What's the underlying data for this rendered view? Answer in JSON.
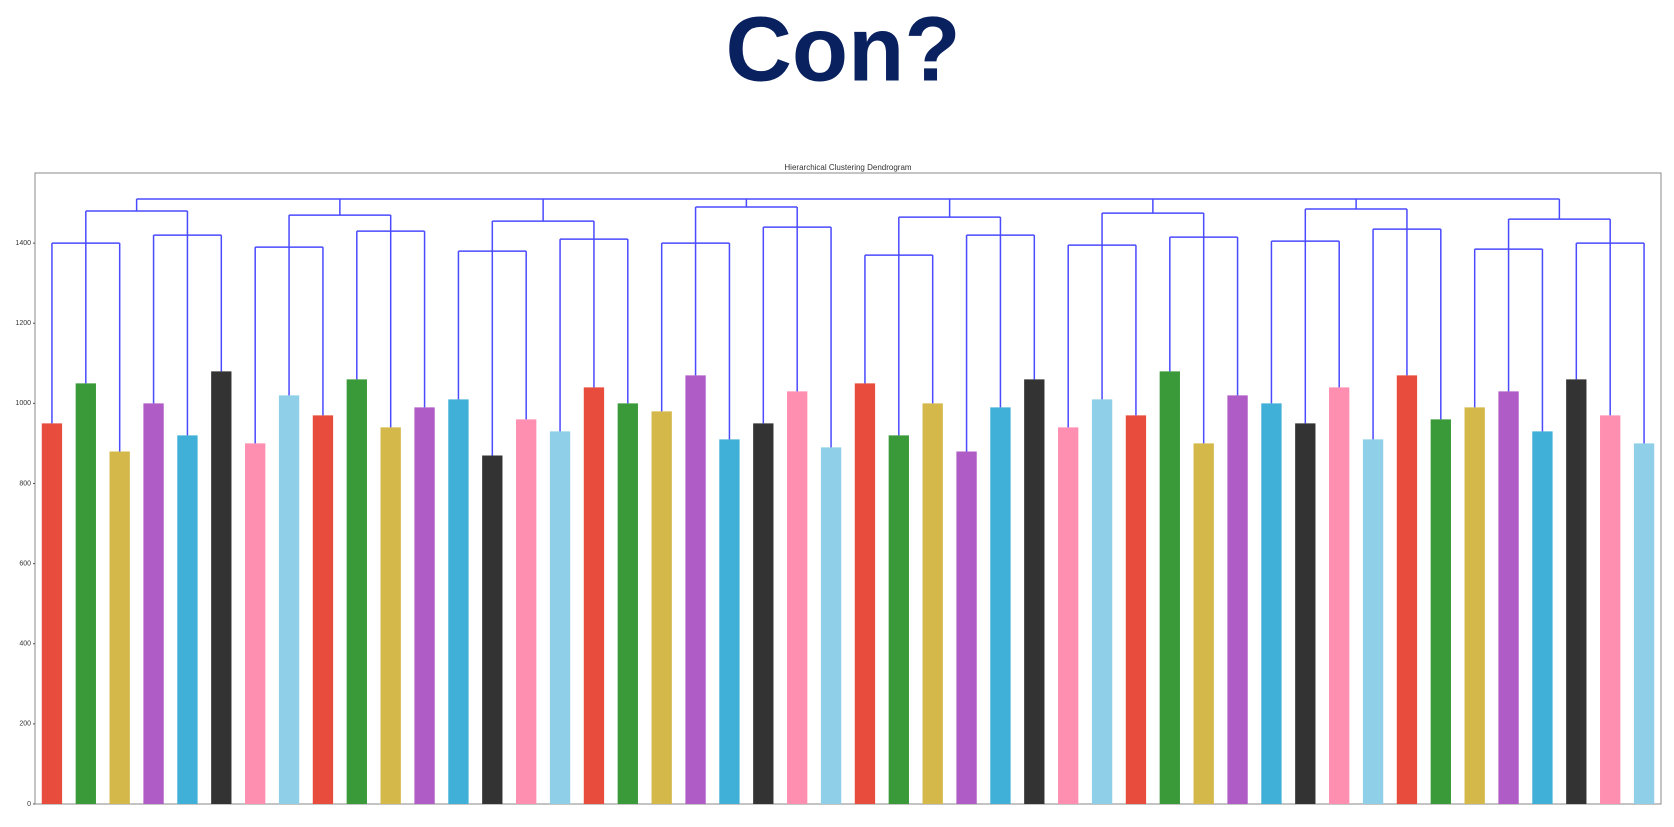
{
  "slide_title": "Con?",
  "chart_data": {
    "type": "dendrogram",
    "title": "Hierarchical Clustering Dendrogram",
    "ylim": [
      0,
      1575
    ],
    "yticks": [
      0,
      200,
      400,
      600,
      800,
      1000,
      1200,
      1400
    ],
    "link_color": "#4a4aff",
    "leaf_colors": [
      "#e74c3c",
      "#3a9a3a",
      "#d4b84a",
      "#b05cc6",
      "#40b0d8",
      "#333333",
      "#ff8fb0",
      "#8fd0e8"
    ],
    "tree": {
      "height": 1510,
      "children": [
        {
          "height": 1480,
          "children": [
            {
              "height": 1400,
              "children": [
                950,
                1050,
                880
              ]
            },
            {
              "height": 1420,
              "children": [
                1000,
                920,
                1080
              ]
            }
          ]
        },
        {
          "height": 1470,
          "children": [
            {
              "height": 1390,
              "children": [
                900,
                1020,
                970
              ]
            },
            {
              "height": 1430,
              "children": [
                1060,
                940,
                990
              ]
            }
          ]
        },
        {
          "height": 1455,
          "children": [
            {
              "height": 1380,
              "children": [
                1010,
                870,
                960
              ]
            },
            {
              "height": 1410,
              "children": [
                930,
                1040,
                1000
              ]
            }
          ]
        },
        {
          "height": 1490,
          "children": [
            {
              "height": 1400,
              "children": [
                980,
                1070,
                910
              ]
            },
            {
              "height": 1440,
              "children": [
                950,
                1030,
                890
              ]
            }
          ]
        },
        {
          "height": 1465,
          "children": [
            {
              "height": 1370,
              "children": [
                1050,
                920,
                1000
              ]
            },
            {
              "height": 1420,
              "children": [
                880,
                990,
                1060
              ]
            }
          ]
        },
        {
          "height": 1475,
          "children": [
            {
              "height": 1395,
              "children": [
                940,
                1010,
                970
              ]
            },
            {
              "height": 1415,
              "children": [
                1080,
                900,
                1020
              ]
            }
          ]
        },
        {
          "height": 1485,
          "children": [
            {
              "height": 1405,
              "children": [
                1000,
                950,
                1040
              ]
            },
            {
              "height": 1435,
              "children": [
                910,
                1070,
                960
              ]
            }
          ]
        },
        {
          "height": 1460,
          "children": [
            {
              "height": 1385,
              "children": [
                990,
                1030,
                930
              ]
            },
            {
              "height": 1400,
              "children": [
                1060,
                970,
                900
              ]
            }
          ]
        }
      ]
    }
  }
}
